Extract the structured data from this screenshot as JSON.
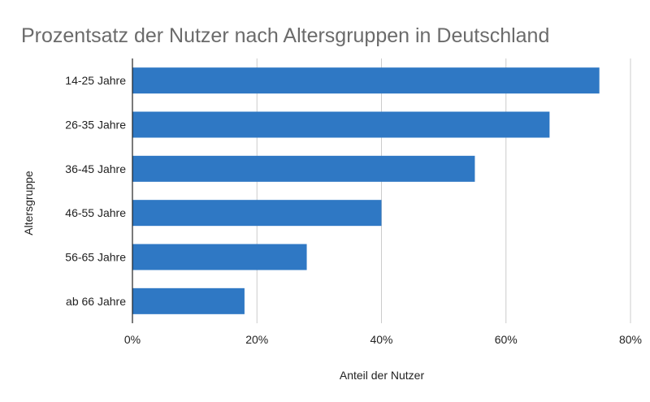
{
  "chart_data": {
    "type": "bar",
    "orientation": "horizontal",
    "title": "Prozentsatz der Nutzer nach Altersgruppen in Deutschland",
    "xlabel": "Anteil der Nutzer",
    "ylabel": "Altersgruppe",
    "categories": [
      "14-25 Jahre",
      "26-35 Jahre",
      "36-45 Jahre",
      "46-55 Jahre",
      "56-65 Jahre",
      "ab 66 Jahre"
    ],
    "values": [
      75,
      67,
      55,
      40,
      28,
      18
    ],
    "xlim": [
      0,
      80
    ],
    "xticks": [
      0,
      20,
      40,
      60,
      80
    ],
    "xtick_labels": [
      "0%",
      "20%",
      "40%",
      "60%",
      "80%"
    ],
    "grid": true,
    "bar_color": "#2f78c4"
  }
}
